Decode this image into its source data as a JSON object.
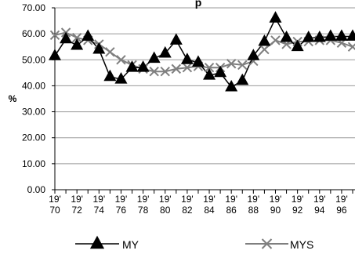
{
  "chart_data": {
    "type": "line",
    "title_partial": "p",
    "ylabel": "%",
    "xlabel": "",
    "ylim": [
      0,
      70
    ],
    "yticks": [
      "0.00",
      "10.00",
      "20.00",
      "30.00",
      "40.00",
      "50.00",
      "60.00",
      "70.00"
    ],
    "x": [
      1970,
      1971,
      1972,
      1973,
      1974,
      1975,
      1976,
      1977,
      1978,
      1979,
      1980,
      1981,
      1982,
      1983,
      1984,
      1985,
      1986,
      1987,
      1988,
      1989,
      1990,
      1991,
      1992,
      1993,
      1994,
      1995,
      1996,
      1997
    ],
    "xtick_labels": [
      {
        "top": "19'",
        "bottom": "70"
      },
      {
        "top": "19'",
        "bottom": "72"
      },
      {
        "top": "19'",
        "bottom": "74"
      },
      {
        "top": "19'",
        "bottom": "76"
      },
      {
        "top": "19'",
        "bottom": "78"
      },
      {
        "top": "19'",
        "bottom": "80"
      },
      {
        "top": "19'",
        "bottom": "82"
      },
      {
        "top": "19'",
        "bottom": "84"
      },
      {
        "top": "19'",
        "bottom": "86"
      },
      {
        "top": "19'",
        "bottom": "88"
      },
      {
        "top": "19'",
        "bottom": "90"
      },
      {
        "top": "19'",
        "bottom": "92"
      },
      {
        "top": "19'",
        "bottom": "94"
      },
      {
        "top": "19'",
        "bottom": "96"
      }
    ],
    "grid": true,
    "legend_position": "bottom",
    "series": [
      {
        "name": "MY",
        "marker": "triangle",
        "color": "#000000",
        "values": [
          51.5,
          58.0,
          55.5,
          59.0,
          54.0,
          43.5,
          42.5,
          47.0,
          47.0,
          50.5,
          52.5,
          57.5,
          50.0,
          49.0,
          44.0,
          45.0,
          39.5,
          42.0,
          51.5,
          57.0,
          66.0,
          58.5,
          55.0,
          58.5,
          58.5,
          59.0,
          59.0,
          59.0
        ]
      },
      {
        "name": "MYS",
        "marker": "x",
        "color": "#7f7f7f",
        "values": [
          59.5,
          60.5,
          58.5,
          57.5,
          56.0,
          53.0,
          50.0,
          48.0,
          46.5,
          45.5,
          45.5,
          46.5,
          47.0,
          47.5,
          47.0,
          47.0,
          48.5,
          48.0,
          49.5,
          54.0,
          57.5,
          56.0,
          57.0,
          57.0,
          57.5,
          57.5,
          56.5,
          55.0
        ]
      }
    ]
  }
}
